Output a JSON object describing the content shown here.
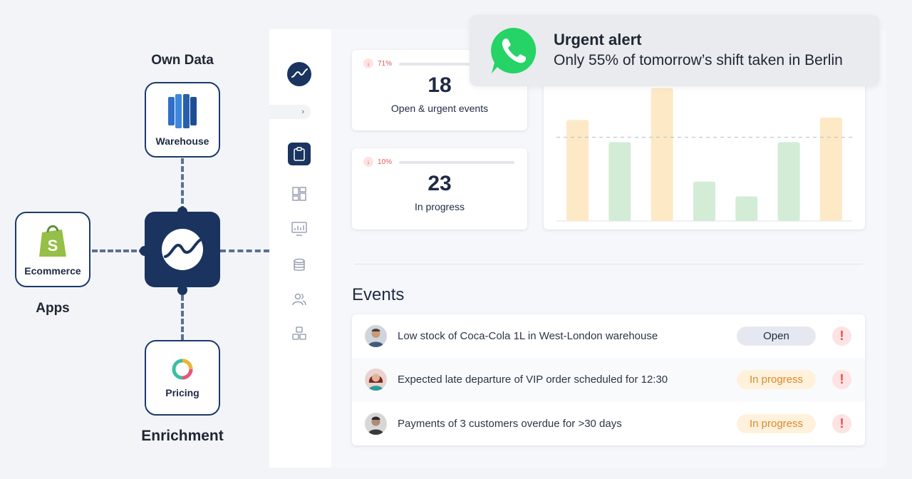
{
  "diagram": {
    "own_data_label": "Own Data",
    "apps_label": "Apps",
    "enrichment_label": "Enrichment",
    "warehouse_caption": "Warehouse",
    "ecommerce_caption": "Ecommerce",
    "pricing_caption": "Pricing"
  },
  "sidebar": {
    "collapse_glyph": "›"
  },
  "stats": [
    {
      "trend": "71%",
      "trend_arrow": "↓",
      "value": "18",
      "label": "Open & urgent events"
    },
    {
      "trend": "10%",
      "trend_arrow": "↓",
      "value": "23",
      "label": "In progress"
    }
  ],
  "chart_data": {
    "type": "bar",
    "title": "",
    "categories": [
      "",
      "",
      "",
      "",
      "",
      "",
      ""
    ],
    "values": [
      82,
      64,
      108,
      32,
      20,
      64,
      84
    ],
    "colors": [
      "#fde9c6",
      "#d3ecd5",
      "#fde9c6",
      "#d3ecd5",
      "#d3ecd5",
      "#d3ecd5",
      "#fde9c6"
    ],
    "reference_line": 68,
    "ylim": [
      0,
      110
    ],
    "grid": false
  },
  "events": {
    "title": "Events",
    "rows": [
      {
        "text": "Low stock of Coca-Cola 1L in West-London warehouse",
        "status": "Open",
        "status_kind": "open",
        "alert": "!"
      },
      {
        "text": "Expected late departure of VIP order scheduled for 12:30",
        "status": "In progress",
        "status_kind": "progress",
        "alert": "!"
      },
      {
        "text": "Payments of 3 customers overdue for >30 days",
        "status": "In progress",
        "status_kind": "progress",
        "alert": "!"
      }
    ]
  },
  "notification": {
    "icon": "whatsapp-icon",
    "title": "Urgent alert",
    "body": "Only 55% of tomorrow’s shift taken in Berlin"
  },
  "colors": {
    "brand_navy": "#1a345f",
    "whatsapp_green": "#25d366",
    "alert_red": "#e54848",
    "progress_orange": "#d98a2b"
  }
}
